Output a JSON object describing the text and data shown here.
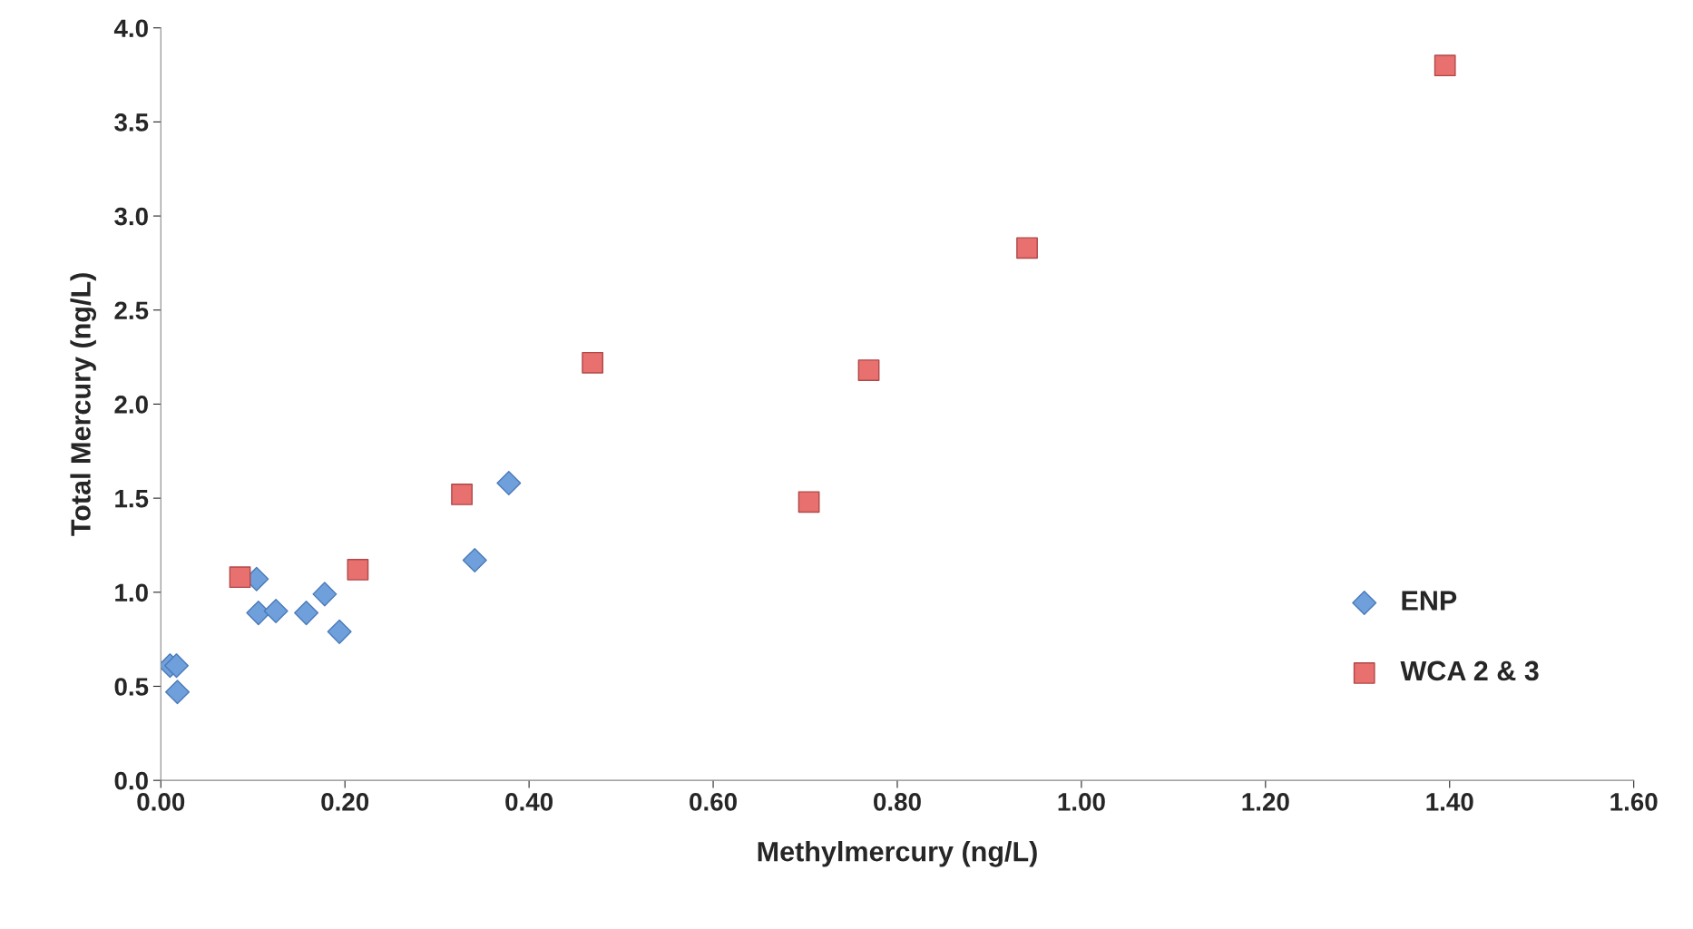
{
  "chart_data": {
    "type": "scatter",
    "xlabel": "Methylmercury (ng/L)",
    "ylabel": "Total Mercury (ng/L)",
    "xlim": [
      0,
      1.6
    ],
    "ylim": [
      0,
      4.0
    ],
    "xticks": [
      {
        "value": 0,
        "label": "0.00"
      },
      {
        "value": 0.2,
        "label": "0.20"
      },
      {
        "value": 0.4,
        "label": "0.40"
      },
      {
        "value": 0.6,
        "label": "0.60"
      },
      {
        "value": 0.8,
        "label": "0.80"
      },
      {
        "value": 1.0,
        "label": "1.00"
      },
      {
        "value": 1.2,
        "label": "1.20"
      },
      {
        "value": 1.4,
        "label": "1.40"
      },
      {
        "value": 1.6,
        "label": "1.60"
      }
    ],
    "yticks": [
      {
        "value": 0,
        "label": "0.0"
      },
      {
        "value": 0.5,
        "label": "0.5"
      },
      {
        "value": 1.0,
        "label": "1.0"
      },
      {
        "value": 1.5,
        "label": "1.5"
      },
      {
        "value": 2.0,
        "label": "2.0"
      },
      {
        "value": 2.5,
        "label": "2.5"
      },
      {
        "value": 3.0,
        "label": "3.0"
      },
      {
        "value": 3.5,
        "label": "3.5"
      },
      {
        "value": 4.0,
        "label": "4.0"
      }
    ],
    "grid": false,
    "legend": "lower right",
    "series": [
      {
        "name": "ENP",
        "color": "#6fa0dc",
        "marker": "diamond",
        "x": [
          0.01,
          0.017,
          0.018,
          0.104,
          0.106,
          0.125,
          0.158,
          0.178,
          0.194,
          0.341,
          0.378
        ],
        "values": [
          0.61,
          0.61,
          0.47,
          1.07,
          0.89,
          0.9,
          0.89,
          0.99,
          0.79,
          1.17,
          1.58
        ]
      },
      {
        "name": "WCA 2 & 3",
        "color": "#e8706e",
        "marker": "square",
        "x": [
          0.086,
          0.214,
          0.327,
          0.469,
          0.704,
          0.769,
          0.941,
          1.395
        ],
        "values": [
          1.08,
          1.12,
          1.52,
          2.22,
          1.48,
          2.18,
          2.83,
          3.8
        ]
      }
    ]
  }
}
